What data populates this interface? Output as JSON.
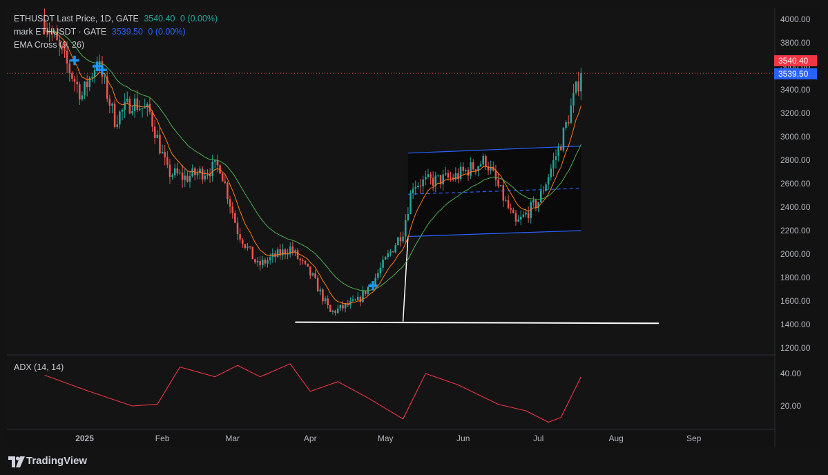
{
  "legend": {
    "main": {
      "name": "ETHUSDT Last Price, 1D, GATE",
      "price": "3540.40",
      "change": "0 (0.00%)"
    },
    "mark": {
      "name": "mark ETHUSDT · GATE",
      "price": "3539.50",
      "change": "0 (0.00%)"
    },
    "ema": {
      "name": "EMA Cross (9, 26)"
    },
    "adx": {
      "name": "ADX (14, 14)"
    }
  },
  "price_tags": {
    "last": "3540.40",
    "mark": "3539.50"
  },
  "brand": {
    "name": "TradingView"
  },
  "colors": {
    "up": "#26a69a",
    "down": "#ef5350",
    "ema_fast": "#ff7a1a",
    "ema_slow": "#4caf50",
    "channel": "#2962ff",
    "support": "#ffffff",
    "adx": "#f23645",
    "last_tag": "#f23645",
    "mark_tag": "#2962ff"
  },
  "chart_data": [
    {
      "type": "candlestick",
      "symbol": "ETHUSDT",
      "interval": "1D",
      "y_ticks": [
        "1200.00",
        "1400.00",
        "1600.00",
        "1800.00",
        "2000.00",
        "2200.00",
        "2400.00",
        "2600.00",
        "2800.00",
        "3000.00",
        "3200.00",
        "3400.00",
        "3600.00",
        "3800.00",
        "4000.00"
      ],
      "x_ticks": [
        "2025",
        "Feb",
        "Mar",
        "Apr",
        "May",
        "Jun",
        "Jul",
        "Aug",
        "Sep"
      ],
      "ylim": [
        1150,
        4100
      ],
      "key_points": [
        {
          "date": "2024-12-16",
          "close": 4000
        },
        {
          "date": "2024-12-31",
          "close": 3350
        },
        {
          "date": "2025-01-06",
          "close": 3650
        },
        {
          "date": "2025-01-13",
          "close": 3150
        },
        {
          "date": "2025-01-20",
          "close": 3300
        },
        {
          "date": "2025-01-27",
          "close": 3200
        },
        {
          "date": "2025-02-03",
          "close": 2700
        },
        {
          "date": "2025-02-10",
          "close": 2650
        },
        {
          "date": "2025-02-24",
          "close": 2750
        },
        {
          "date": "2025-03-03",
          "close": 2200
        },
        {
          "date": "2025-03-11",
          "close": 1900
        },
        {
          "date": "2025-03-24",
          "close": 2050
        },
        {
          "date": "2025-04-02",
          "close": 1800
        },
        {
          "date": "2025-04-09",
          "close": 1500
        },
        {
          "date": "2025-04-20",
          "close": 1600
        },
        {
          "date": "2025-04-27",
          "close": 1800
        },
        {
          "date": "2025-05-08",
          "close": 2200
        },
        {
          "date": "2025-05-12",
          "close": 2600
        },
        {
          "date": "2025-05-28",
          "close": 2650
        },
        {
          "date": "2025-06-10",
          "close": 2800
        },
        {
          "date": "2025-06-22",
          "close": 2250
        },
        {
          "date": "2025-07-01",
          "close": 2450
        },
        {
          "date": "2025-07-10",
          "close": 2950
        },
        {
          "date": "2025-07-18",
          "close": 3540
        }
      ],
      "ema_cross_signals": [
        {
          "date": "2024-12-28",
          "price": 3650
        },
        {
          "date": "2025-01-06",
          "price": 3600
        },
        {
          "date": "2025-01-08",
          "price": 3570
        },
        {
          "date": "2025-04-26",
          "price": 1730
        }
      ],
      "channel": {
        "upper": [
          {
            "date": "2025-05-10",
            "price": 2860
          },
          {
            "date": "2025-07-18",
            "price": 2920
          }
        ],
        "middle": [
          {
            "date": "2025-05-10",
            "price": 2510
          },
          {
            "date": "2025-07-18",
            "price": 2560
          }
        ],
        "lower": [
          {
            "date": "2025-05-10",
            "price": 2150
          },
          {
            "date": "2025-07-18",
            "price": 2200
          }
        ]
      },
      "support_line": {
        "from": {
          "date": "2025-03-26",
          "price": 1420
        },
        "to": {
          "date": "2025-08-18",
          "price": 1410
        }
      },
      "last_price": 3540.4,
      "mark_price": 3539.5
    },
    {
      "type": "line",
      "name": "ADX (14, 14)",
      "y_ticks": [
        "20.00",
        "40.00"
      ],
      "ylim": [
        8,
        48
      ],
      "x": [
        "2024-12-16",
        "2025-01-01",
        "2025-01-20",
        "2025-01-30",
        "2025-02-08",
        "2025-02-22",
        "2025-03-03",
        "2025-03-12",
        "2025-03-24",
        "2025-04-01",
        "2025-04-12",
        "2025-04-24",
        "2025-05-08",
        "2025-05-17",
        "2025-05-30",
        "2025-06-15",
        "2025-06-26",
        "2025-07-05",
        "2025-07-10",
        "2025-07-18"
      ],
      "values": [
        39,
        30,
        20,
        21,
        44,
        38,
        45,
        38,
        46,
        29,
        35,
        25,
        12,
        40,
        33,
        21,
        17,
        10,
        13,
        38
      ]
    }
  ]
}
